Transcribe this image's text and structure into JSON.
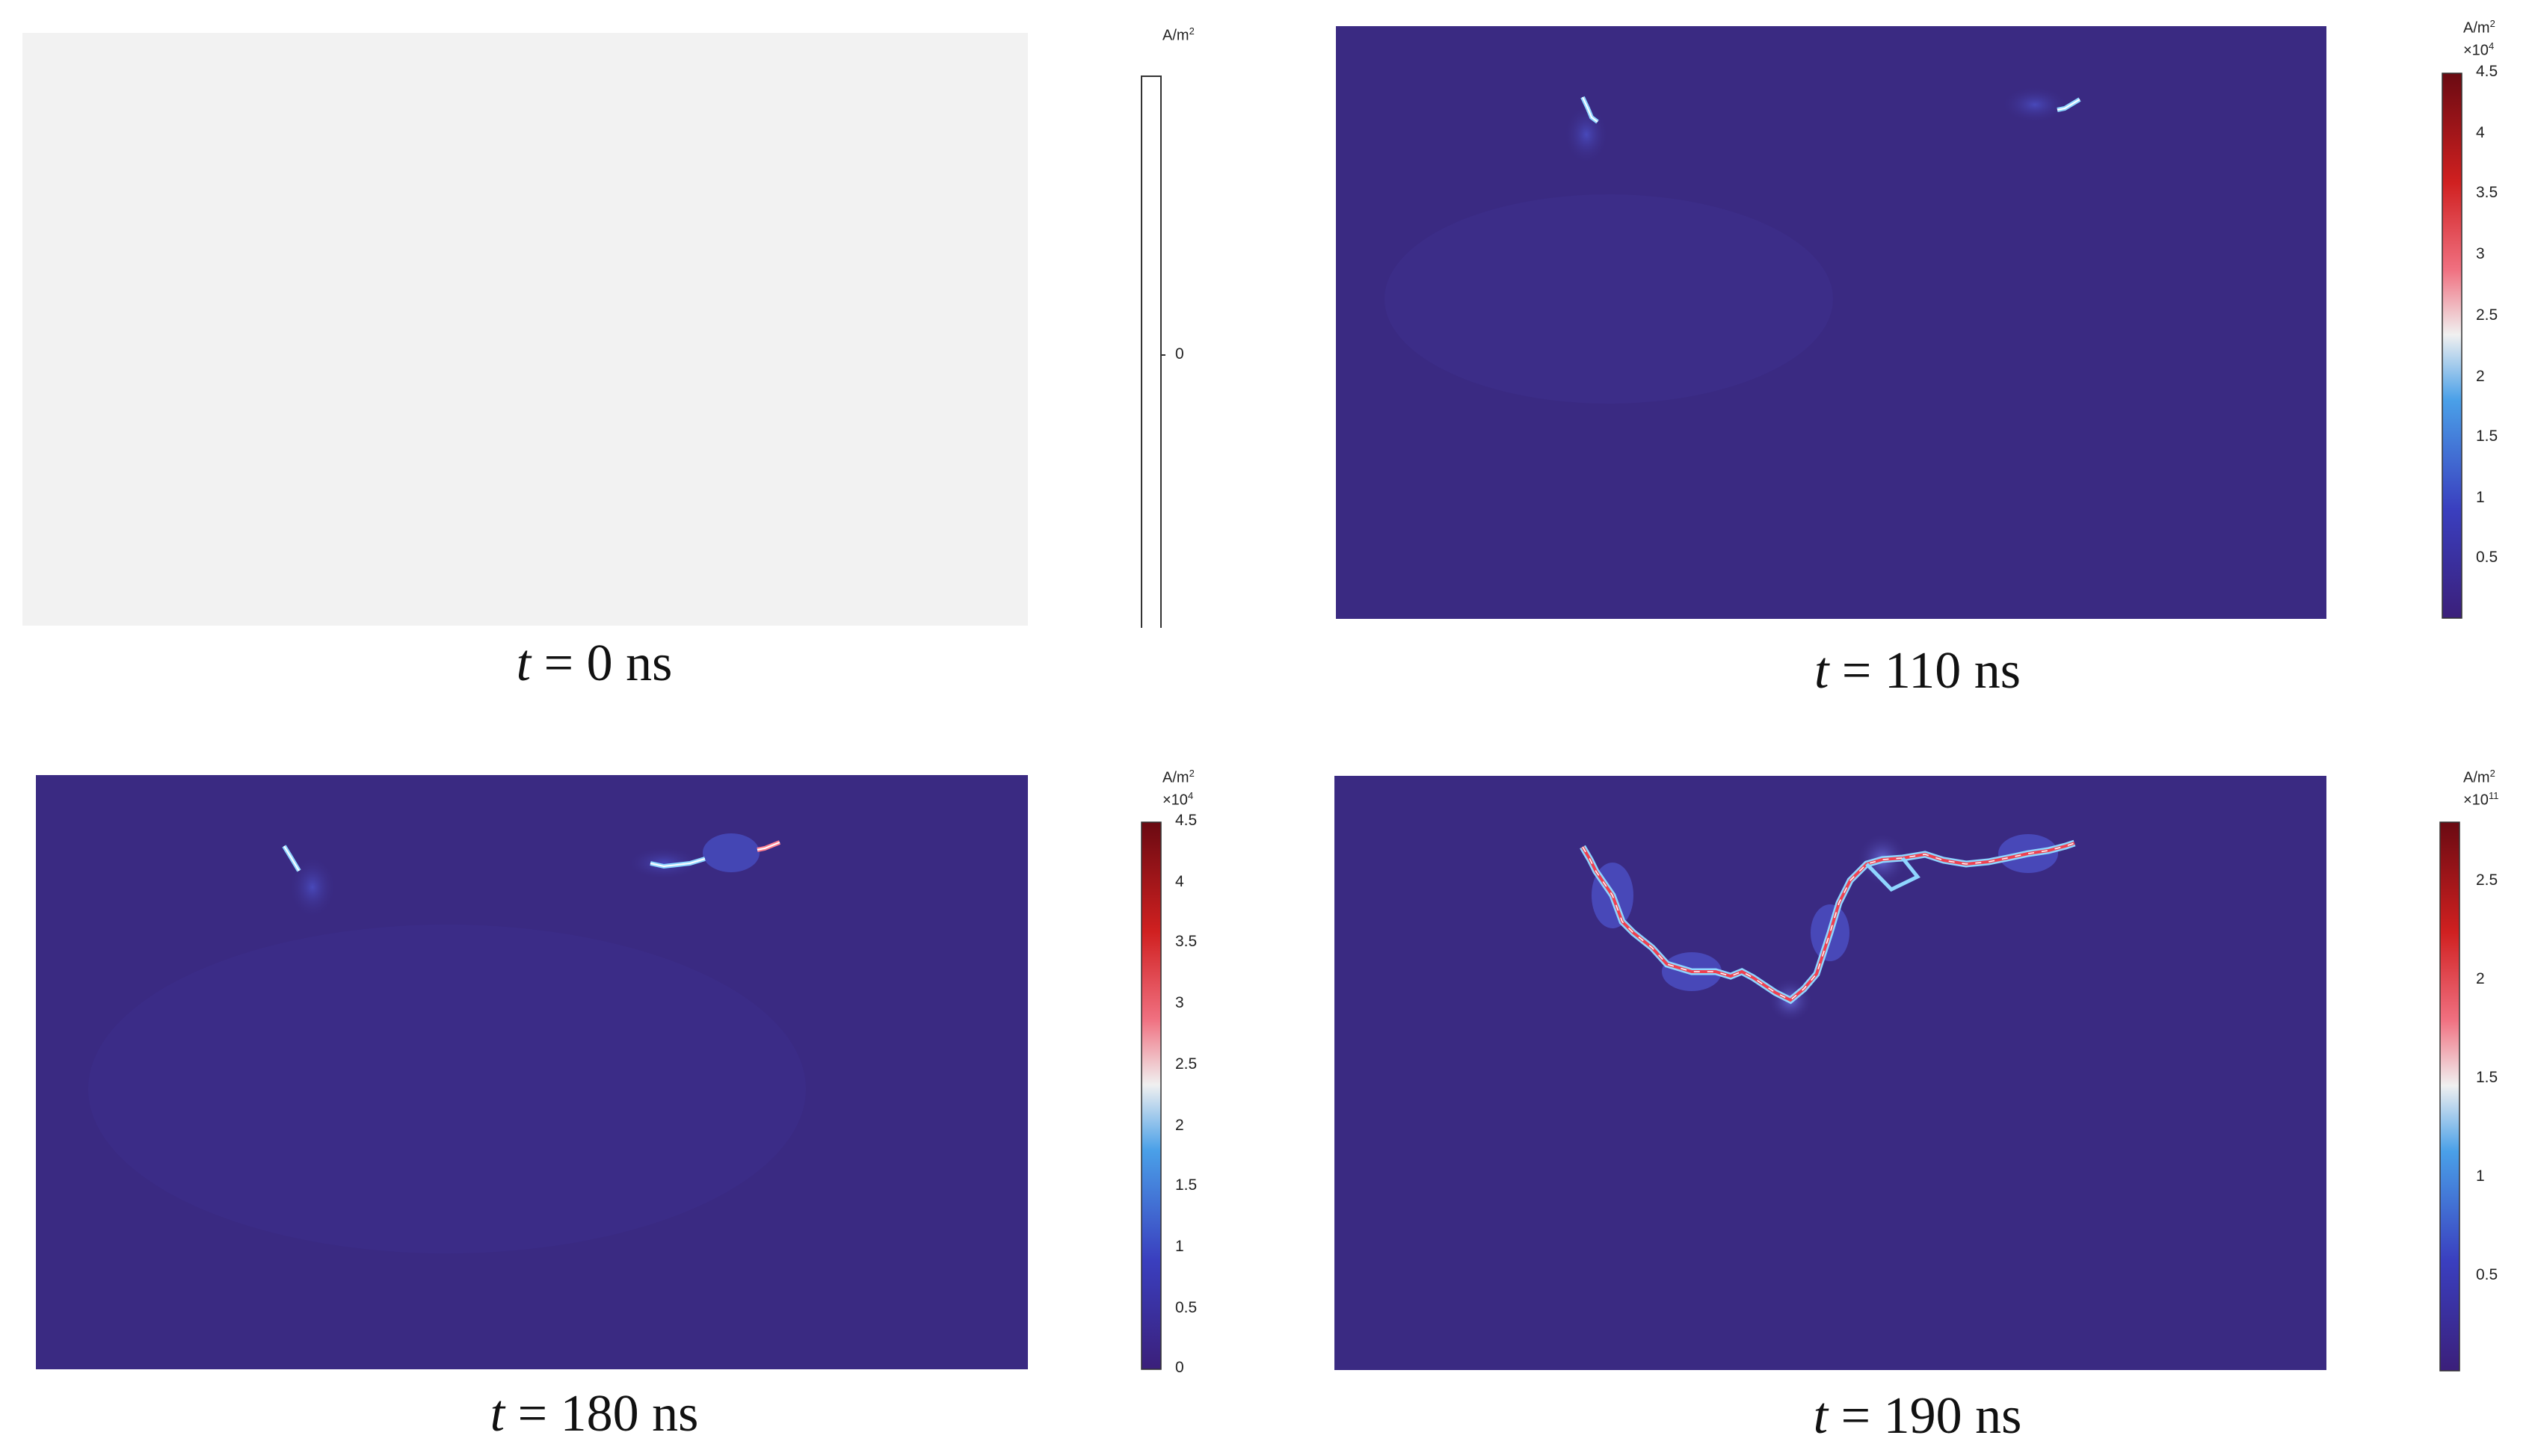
{
  "colors": {
    "background_zero": "#f2f2f2",
    "field_blue": "#3a2a82",
    "colormap": [
      "#3b1f7a",
      "#3a3fbf",
      "#4aa0e8",
      "#f0f0f0",
      "#f07080",
      "#d02020",
      "#6a0a12"
    ]
  },
  "panels": [
    {
      "caption": {
        "var": "t",
        "rest": " = 0 ns"
      },
      "colorbar": {
        "unit": "A/m",
        "unit_exp": "2",
        "multiplier": "",
        "ticks": [
          "0"
        ],
        "max": ""
      }
    },
    {
      "caption": {
        "var": "t",
        "rest": " = 110 ns"
      },
      "colorbar": {
        "unit": "A/m",
        "unit_exp": "2",
        "multiplier": "×10",
        "multiplier_exp": "4",
        "max": "4.5",
        "ticks": [
          "4",
          "3.5",
          "3",
          "2.5",
          "2",
          "1.5",
          "1",
          "0.5"
        ]
      }
    },
    {
      "caption": {
        "var": "t",
        "rest": " = 180 ns"
      },
      "colorbar": {
        "unit": "A/m",
        "unit_exp": "2",
        "multiplier": "×10",
        "multiplier_exp": "4",
        "max": "4.5",
        "ticks": [
          "4",
          "3.5",
          "3",
          "2.5",
          "2",
          "1.5",
          "1",
          "0.5",
          "0"
        ]
      }
    },
    {
      "caption": {
        "var": "t",
        "rest": " = 190 ns"
      },
      "colorbar": {
        "unit": "A/m",
        "unit_exp": "2",
        "multiplier": "×10",
        "multiplier_exp": "11",
        "max": "",
        "ticks": [
          "2.5",
          "2",
          "1.5",
          "1",
          "0.5"
        ]
      }
    }
  ]
}
